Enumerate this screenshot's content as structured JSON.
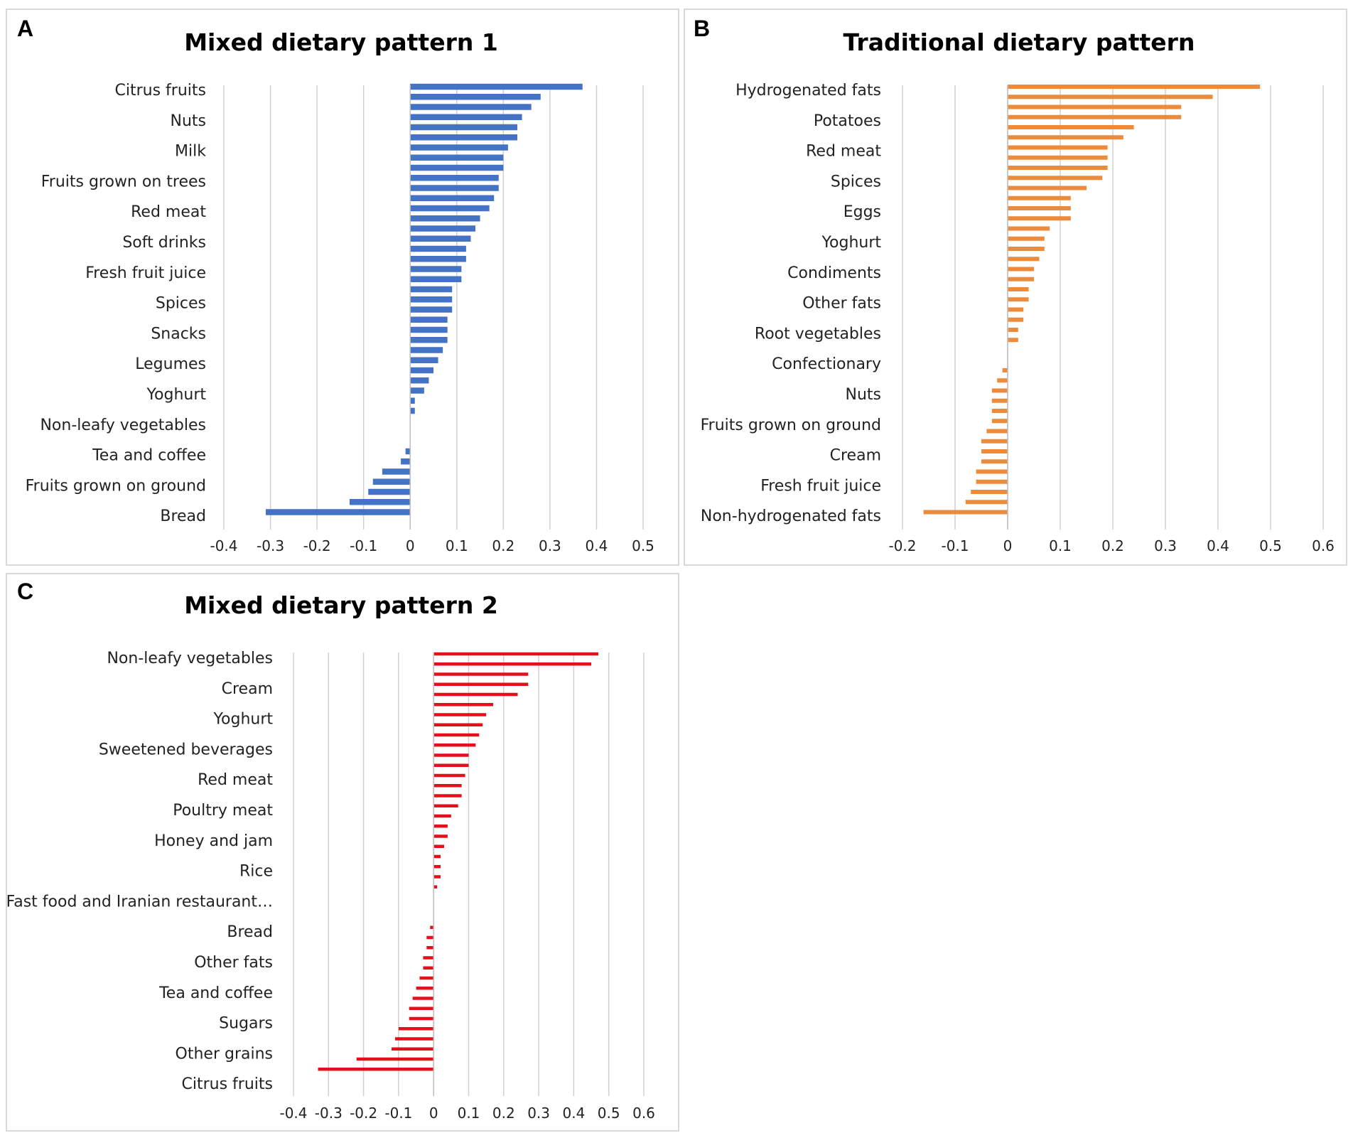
{
  "chart_data": [
    {
      "id": "A",
      "type": "bar",
      "orientation": "horizontal",
      "letter": "A",
      "title": "Mixed dietary pattern 1",
      "color": "#4472c4",
      "xlim": [
        -0.4,
        0.5
      ],
      "xticks": [
        -0.4,
        -0.3,
        -0.2,
        -0.1,
        0,
        0.1,
        0.2,
        0.3,
        0.4,
        0.5
      ],
      "xtick_labels": [
        "-0.4",
        "-0.3",
        "-0.2",
        "-0.1",
        "0",
        "0.1",
        "0.2",
        "0.3",
        "0.4",
        "0.5"
      ],
      "category_labels": [
        "Citrus fruits",
        "Nuts",
        "Milk",
        "Fruits grown on trees",
        "Red meat",
        "Soft drinks",
        "Fresh fruit juice",
        "Spices",
        "Snacks",
        "Legumes",
        "Yoghurt",
        "Non-leafy vegetables",
        "Tea and coffee",
        "Fruits grown on ground",
        "Bread"
      ],
      "values": [
        0.37,
        0.28,
        0.26,
        0.24,
        0.23,
        0.23,
        0.21,
        0.2,
        0.2,
        0.19,
        0.19,
        0.18,
        0.17,
        0.15,
        0.14,
        0.13,
        0.12,
        0.12,
        0.11,
        0.11,
        0.09,
        0.09,
        0.09,
        0.08,
        0.08,
        0.08,
        0.07,
        0.06,
        0.05,
        0.04,
        0.03,
        0.01,
        0.01,
        0.0,
        0.0,
        0.0,
        -0.01,
        -0.02,
        -0.06,
        -0.08,
        -0.09,
        -0.13,
        -0.31
      ]
    },
    {
      "id": "B",
      "type": "bar",
      "orientation": "horizontal",
      "letter": "B",
      "title": "Traditional dietary pattern",
      "color": "#ed8b3c",
      "xlim": [
        -0.2,
        0.6
      ],
      "xticks": [
        -0.2,
        -0.1,
        0,
        0.1,
        0.2,
        0.3,
        0.4,
        0.5,
        0.6
      ],
      "xtick_labels": [
        "-0.2",
        "-0.1",
        "0",
        "0.1",
        "0.2",
        "0.3",
        "0.4",
        "0.5",
        "0.6"
      ],
      "category_labels": [
        "Hydrogenated fats",
        "Potatoes",
        "Red meat",
        "Spices",
        "Eggs",
        "Yoghurt",
        "Condiments",
        "Other fats",
        "Root vegetables",
        "Confectionary",
        "Nuts",
        "Fruits grown on ground",
        "Cream",
        "Fresh fruit juice",
        "Non-hydrogenated fats"
      ],
      "values": [
        0.48,
        0.39,
        0.33,
        0.33,
        0.24,
        0.22,
        0.19,
        0.19,
        0.19,
        0.18,
        0.15,
        0.12,
        0.12,
        0.12,
        0.08,
        0.07,
        0.07,
        0.06,
        0.05,
        0.05,
        0.04,
        0.04,
        0.03,
        0.03,
        0.02,
        0.02,
        0.0,
        0.0,
        -0.01,
        -0.02,
        -0.03,
        -0.03,
        -0.03,
        -0.03,
        -0.04,
        -0.05,
        -0.05,
        -0.05,
        -0.06,
        -0.06,
        -0.07,
        -0.08,
        -0.16
      ]
    },
    {
      "id": "C",
      "type": "bar",
      "orientation": "horizontal",
      "letter": "C",
      "title": "Mixed dietary pattern 2",
      "color": "#e3101c",
      "xlim": [
        -0.4,
        0.6
      ],
      "xticks": [
        -0.4,
        -0.3,
        -0.2,
        -0.1,
        0,
        0.1,
        0.2,
        0.3,
        0.4,
        0.5,
        0.6
      ],
      "xtick_labels": [
        "-0.4",
        "-0.3",
        "-0.2",
        "-0.1",
        "0",
        "0.1",
        "0.2",
        "0.3",
        "0.4",
        "0.5",
        "0.6"
      ],
      "category_labels": [
        "Non-leafy vegetables",
        "Cream",
        "Yoghurt",
        "Sweetened beverages",
        "Red meat",
        "Poultry meat",
        "Honey and jam",
        "Rice",
        "Fast food and Iranian restaurant…",
        "Bread",
        "Other fats",
        "Tea and coffee",
        "Sugars",
        "Other grains",
        "Citrus fruits"
      ],
      "values": [
        0.47,
        0.45,
        0.27,
        0.27,
        0.24,
        0.17,
        0.15,
        0.14,
        0.13,
        0.12,
        0.1,
        0.1,
        0.09,
        0.08,
        0.08,
        0.07,
        0.05,
        0.04,
        0.04,
        0.03,
        0.02,
        0.02,
        0.02,
        0.01,
        0.0,
        0.0,
        0.0,
        -0.01,
        -0.02,
        -0.02,
        -0.03,
        -0.03,
        -0.04,
        -0.05,
        -0.06,
        -0.07,
        -0.07,
        -0.1,
        -0.11,
        -0.12,
        -0.22,
        -0.33
      ]
    }
  ]
}
